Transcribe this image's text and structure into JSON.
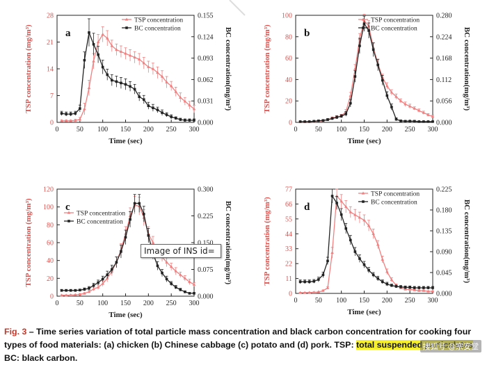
{
  "figure": {
    "caption_label": "Fig. 3",
    "caption_text": " – Time series variation of total particle mass concentration and black carbon concentration for cooking four types of food materials: (a) chicken (b) Chinese cabbage (c) potato and (d) pork. TSP: ",
    "caption_highlight": "total suspended particulates",
    "caption_tail": "; BC: black carbon.",
    "tooltip": "Image of INS id=",
    "watermark": "搜狐号 @宗安堂"
  },
  "colors": {
    "tsp": "#f08080",
    "bc": "#222222"
  },
  "chart_data": [
    {
      "panel": "a",
      "type": "line",
      "xlabel": "Time (sec)",
      "ylabel": "TSP concentration (mg/m³)",
      "y2label": "BC concentration(mg/m³)",
      "xlim": [
        0,
        300
      ],
      "ylim": [
        0,
        28
      ],
      "y2lim": [
        0,
        0.155
      ],
      "xticks": [
        "0",
        "50",
        "100",
        "150",
        "200",
        "250",
        "300"
      ],
      "yticks": [
        "0",
        "7",
        "14",
        "21",
        "28"
      ],
      "y2ticks": [
        "0.000",
        "0.031",
        "0.062",
        "0.093",
        "0.124",
        "0.155"
      ],
      "legend": [
        "TSP concentration",
        "BC concentration"
      ],
      "legend_position": "top-right",
      "x": [
        10,
        20,
        30,
        40,
        50,
        60,
        70,
        80,
        90,
        100,
        110,
        120,
        130,
        140,
        150,
        160,
        170,
        180,
        190,
        200,
        210,
        220,
        230,
        240,
        250,
        260,
        270,
        280,
        290,
        300
      ],
      "series": [
        {
          "name": "TSP concentration",
          "axis": "left",
          "values": [
            0.4,
            0.4,
            0.4,
            0.5,
            0.8,
            3.5,
            9,
            16,
            21,
            23,
            22,
            20,
            19,
            18.5,
            18,
            17.5,
            17,
            16.5,
            15.5,
            14.5,
            14,
            13,
            12,
            10.5,
            9.5,
            8,
            6.5,
            5.5,
            4.5,
            3.5
          ],
          "err": [
            0.2,
            0.2,
            0.2,
            0.3,
            0.5,
            1.5,
            2,
            2,
            2,
            2,
            2,
            1.5,
            1.5,
            1.5,
            1.5,
            1.5,
            1.5,
            1.5,
            1.5,
            1.5,
            1.5,
            1.5,
            1.5,
            1.5,
            1.2,
            1.2,
            1.2,
            1,
            1,
            1
          ]
        },
        {
          "name": "BC concentration",
          "axis": "right",
          "values": [
            0.013,
            0.012,
            0.012,
            0.013,
            0.02,
            0.09,
            0.13,
            0.113,
            0.098,
            0.08,
            0.069,
            0.061,
            0.059,
            0.057,
            0.055,
            0.052,
            0.048,
            0.037,
            0.033,
            0.024,
            0.021,
            0.018,
            0.014,
            0.011,
            0.008,
            0.006,
            0.004,
            0.003,
            0.003,
            0.003
          ],
          "err": [
            0.003,
            0.003,
            0.003,
            0.003,
            0.005,
            0.012,
            0.02,
            0.016,
            0.012,
            0.01,
            0.008,
            0.008,
            0.008,
            0.008,
            0.008,
            0.007,
            0.007,
            0.006,
            0.006,
            0.005,
            0.005,
            0.004,
            0.004,
            0.003,
            0.003,
            0.002,
            0.002,
            0.002,
            0.002,
            0.002
          ]
        }
      ]
    },
    {
      "panel": "b",
      "type": "line",
      "xlabel": "Time (sec)",
      "ylabel": "TSP concentration (mg/m³)",
      "y2label": "BC concentration(mg/m³)",
      "xlim": [
        0,
        300
      ],
      "ylim": [
        0,
        100
      ],
      "y2lim": [
        0,
        0.28
      ],
      "xticks": [
        "0",
        "50",
        "100",
        "150",
        "200",
        "250",
        "300"
      ],
      "yticks": [
        "0",
        "20",
        "40",
        "60",
        "80",
        "100"
      ],
      "y2ticks": [
        "0.000",
        "0.056",
        "0.112",
        "0.168",
        "0.224",
        "0.280"
      ],
      "legend": [
        "TSP concentration",
        "BC concentration"
      ],
      "legend_position": "top-right",
      "x": [
        10,
        20,
        30,
        40,
        50,
        60,
        70,
        80,
        90,
        100,
        110,
        120,
        130,
        140,
        150,
        160,
        170,
        180,
        190,
        200,
        210,
        220,
        230,
        240,
        250,
        260,
        270,
        280,
        290,
        300
      ],
      "series": [
        {
          "name": "TSP concentration",
          "axis": "left",
          "values": [
            0.5,
            0.5,
            0.6,
            0.8,
            1,
            1.5,
            2.5,
            4,
            5,
            6,
            10,
            25,
            50,
            78,
            95,
            90,
            70,
            55,
            42,
            34,
            28,
            24,
            20,
            17,
            15,
            13,
            11,
            9,
            7,
            5.5
          ],
          "err": [
            0.3,
            0.3,
            0.3,
            0.3,
            0.4,
            0.5,
            0.8,
            1,
            1.2,
            1.5,
            2,
            3,
            4,
            5,
            6,
            5,
            4,
            4,
            3,
            3,
            2.5,
            2.5,
            2,
            2,
            2,
            1.5,
            1.5,
            1.5,
            1.2,
            1.2
          ]
        },
        {
          "name": "BC concentration",
          "axis": "right",
          "values": [
            0.002,
            0.002,
            0.002,
            0.003,
            0.004,
            0.005,
            0.007,
            0.01,
            0.013,
            0.016,
            0.022,
            0.05,
            0.12,
            0.2,
            0.258,
            0.24,
            0.19,
            0.15,
            0.11,
            0.07,
            0.04,
            0.008,
            0.004,
            0.003,
            0.003,
            0.003,
            0.002,
            0.002,
            0.002,
            0.002
          ],
          "err": [
            0.001,
            0.001,
            0.001,
            0.001,
            0.002,
            0.002,
            0.003,
            0.003,
            0.004,
            0.004,
            0.006,
            0.01,
            0.015,
            0.02,
            0.02,
            0.02,
            0.018,
            0.015,
            0.013,
            0.01,
            0.008,
            0.004,
            0.002,
            0.002,
            0.002,
            0.002,
            0.001,
            0.001,
            0.001,
            0.001
          ]
        }
      ]
    },
    {
      "panel": "c",
      "type": "line",
      "xlabel": "Time (sec)",
      "ylabel": "TSP concentration (mg/m³)",
      "y2label": "BC concentration(mg/m³)",
      "xlim": [
        0,
        300
      ],
      "ylim": [
        0,
        120
      ],
      "y2lim": [
        0,
        0.3
      ],
      "xticks": [
        "0",
        "50",
        "100",
        "150",
        "200",
        "250",
        "300"
      ],
      "yticks": [
        "0",
        "20",
        "40",
        "60",
        "80",
        "100",
        "120"
      ],
      "y2ticks": [
        "0.000",
        "0.075",
        "0.150",
        "0.225",
        "0.300"
      ],
      "legend": [
        "TSP concentration",
        "BC concentration"
      ],
      "legend_position": "top-left",
      "x": [
        10,
        20,
        30,
        40,
        50,
        60,
        70,
        80,
        90,
        100,
        110,
        120,
        130,
        140,
        150,
        160,
        170,
        180,
        190,
        200,
        210,
        220,
        230,
        240,
        250,
        260,
        270,
        280,
        290,
        300
      ],
      "series": [
        {
          "name": "TSP concentration",
          "axis": "left",
          "values": [
            1,
            1,
            1.2,
            1.5,
            2,
            3,
            5,
            8,
            10,
            14,
            20,
            28,
            38,
            52,
            70,
            90,
            102,
            101,
            88,
            70,
            60,
            50,
            44,
            38,
            33,
            28,
            24,
            20,
            16,
            13
          ],
          "err": [
            0.5,
            0.5,
            0.5,
            0.6,
            0.8,
            1,
            1.5,
            2,
            2.5,
            3,
            4,
            5,
            6,
            7,
            8,
            9,
            10,
            10,
            9,
            8,
            7,
            6,
            5,
            5,
            4,
            4,
            3,
            3,
            3,
            2
          ]
        },
        {
          "name": "BC concentration",
          "axis": "right",
          "values": [
            0.016,
            0.016,
            0.016,
            0.016,
            0.017,
            0.019,
            0.022,
            0.03,
            0.038,
            0.048,
            0.06,
            0.075,
            0.095,
            0.125,
            0.165,
            0.215,
            0.26,
            0.26,
            0.23,
            0.17,
            0.12,
            0.085,
            0.065,
            0.048,
            0.035,
            0.025,
            0.018,
            0.012,
            0.008,
            0.008
          ],
          "err": [
            0.003,
            0.003,
            0.003,
            0.003,
            0.003,
            0.004,
            0.005,
            0.006,
            0.007,
            0.008,
            0.01,
            0.012,
            0.015,
            0.018,
            0.02,
            0.022,
            0.025,
            0.025,
            0.022,
            0.02,
            0.016,
            0.012,
            0.01,
            0.008,
            0.006,
            0.005,
            0.004,
            0.003,
            0.002,
            0.002
          ]
        }
      ]
    },
    {
      "panel": "d",
      "type": "line",
      "xlabel": "Time (sec)",
      "ylabel": "TSP concentration (mg/m³)",
      "y2label": "BC concentration(mg/m³)",
      "xlim": [
        0,
        300
      ],
      "ylim": [
        0,
        77
      ],
      "y2lim": [
        0,
        0.225
      ],
      "xticks": [
        "0",
        "50",
        "100",
        "150",
        "200",
        "250",
        "300"
      ],
      "yticks": [
        "0",
        "11",
        "22",
        "33",
        "44",
        "55",
        "66",
        "77"
      ],
      "y2ticks": [
        "0.000",
        "0.045",
        "0.090",
        "0.135",
        "0.180",
        "0.225"
      ],
      "legend": [
        "TSP concentration",
        "BC concentration"
      ],
      "legend_position": "top-right",
      "x": [
        10,
        20,
        30,
        40,
        50,
        60,
        70,
        80,
        90,
        100,
        110,
        120,
        130,
        140,
        150,
        160,
        170,
        180,
        190,
        200,
        210,
        220,
        230,
        240,
        250,
        260,
        270,
        280,
        290,
        300
      ],
      "series": [
        {
          "name": "TSP concentration",
          "axis": "left",
          "values": [
            0.5,
            0.5,
            0.6,
            0.8,
            1,
            2,
            4,
            30,
            72,
            68,
            64,
            60,
            58,
            56,
            54,
            50,
            44,
            36,
            25,
            16,
            10,
            6,
            4,
            3,
            3,
            2.5,
            2,
            2,
            1.5,
            1.5
          ],
          "err": [
            0.3,
            0.3,
            0.3,
            0.3,
            0.4,
            0.6,
            1,
            4,
            5,
            5,
            4.5,
            4,
            4,
            4,
            4,
            4,
            3.5,
            3,
            2.5,
            2,
            1.5,
            1,
            0.8,
            0.6,
            0.6,
            0.5,
            0.5,
            0.5,
            0.4,
            0.4
          ]
        },
        {
          "name": "BC concentration",
          "axis": "right",
          "values": [
            0.025,
            0.025,
            0.025,
            0.026,
            0.03,
            0.04,
            0.07,
            0.21,
            0.195,
            0.17,
            0.14,
            0.115,
            0.09,
            0.075,
            0.062,
            0.05,
            0.04,
            0.032,
            0.025,
            0.02,
            0.017,
            0.015,
            0.014,
            0.013,
            0.013,
            0.012,
            0.012,
            0.012,
            0.012,
            0.012
          ],
          "err": [
            0.004,
            0.004,
            0.004,
            0.004,
            0.005,
            0.006,
            0.008,
            0.015,
            0.014,
            0.013,
            0.011,
            0.01,
            0.009,
            0.008,
            0.007,
            0.006,
            0.005,
            0.005,
            0.004,
            0.004,
            0.003,
            0.003,
            0.003,
            0.003,
            0.003,
            0.003,
            0.003,
            0.003,
            0.003,
            0.003
          ]
        }
      ]
    }
  ]
}
